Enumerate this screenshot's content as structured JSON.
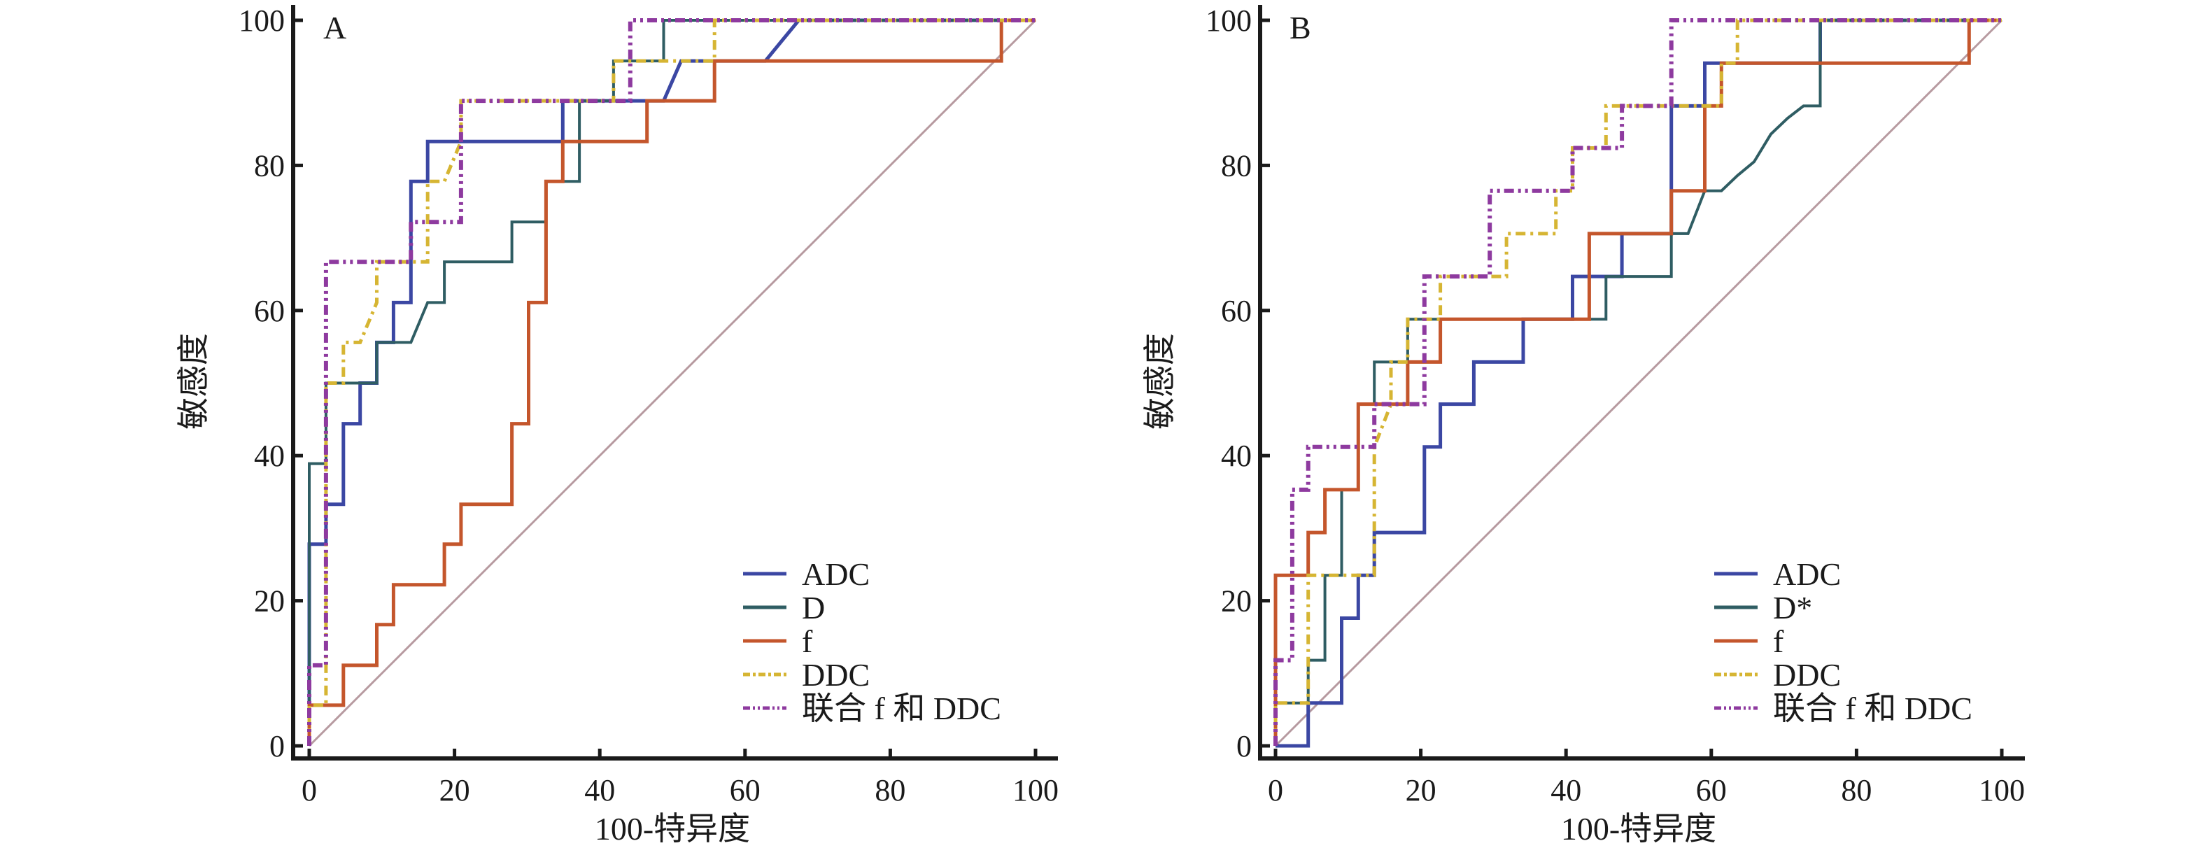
{
  "figure": {
    "background": "#ffffff",
    "series_styles": {
      "ADC": {
        "color": "#3b47a3",
        "dash": "solid"
      },
      "D": {
        "color": "#2f5d63",
        "dash": "solid"
      },
      "D*": {
        "color": "#2f5d63",
        "dash": "solid"
      },
      "f": {
        "color": "#c4562c",
        "dash": "solid"
      },
      "DDC": {
        "color": "#d6b533",
        "dash": "dash-dot"
      },
      "联合 f 和 DDC": {
        "color": "#8e3a9f",
        "dash": "dash-dot-dot"
      }
    },
    "reference_line_color": "#b79aa0"
  },
  "chart_data": [
    {
      "type": "line",
      "panel_label": "A",
      "title": "",
      "xlabel": "100-特异度",
      "ylabel": "敏感度",
      "xlim": [
        0,
        100
      ],
      "ylim": [
        0,
        100
      ],
      "xticks": [
        "0",
        "20",
        "40",
        "60",
        "80",
        "100"
      ],
      "yticks": [
        "0",
        "20",
        "40",
        "60",
        "80",
        "100"
      ],
      "grid": false,
      "legend_position": "bottom-right",
      "reference_line": {
        "label": "",
        "points": [
          [
            0,
            0
          ],
          [
            100,
            100
          ]
        ]
      },
      "series": [
        {
          "name": "ADC",
          "points": [
            [
              0,
              0
            ],
            [
              0,
              27.8
            ],
            [
              2.3,
              27.8
            ],
            [
              2.3,
              33.3
            ],
            [
              4.7,
              33.3
            ],
            [
              4.7,
              44.4
            ],
            [
              7.0,
              44.4
            ],
            [
              7.0,
              50
            ],
            [
              9.3,
              50
            ],
            [
              9.3,
              55.6
            ],
            [
              11.6,
              55.6
            ],
            [
              11.6,
              61.1
            ],
            [
              14.0,
              61.1
            ],
            [
              14.0,
              77.8
            ],
            [
              16.3,
              77.8
            ],
            [
              16.3,
              83.3
            ],
            [
              34.9,
              83.3
            ],
            [
              34.9,
              88.9
            ],
            [
              48.8,
              88.9
            ],
            [
              51.2,
              94.4
            ],
            [
              62.8,
              94.4
            ],
            [
              65.1,
              97.2
            ],
            [
              67.4,
              100
            ],
            [
              100,
              100
            ]
          ]
        },
        {
          "name": "D",
          "points": [
            [
              0,
              0
            ],
            [
              0,
              38.9
            ],
            [
              2.3,
              38.9
            ],
            [
              2.3,
              50
            ],
            [
              9.3,
              50
            ],
            [
              9.3,
              55.6
            ],
            [
              14.0,
              55.6
            ],
            [
              16.3,
              61.1
            ],
            [
              18.6,
              61.1
            ],
            [
              18.6,
              66.7
            ],
            [
              27.9,
              66.7
            ],
            [
              27.9,
              72.2
            ],
            [
              32.6,
              72.2
            ],
            [
              32.6,
              77.8
            ],
            [
              37.2,
              77.8
            ],
            [
              37.2,
              88.9
            ],
            [
              41.9,
              88.9
            ],
            [
              41.9,
              94.4
            ],
            [
              48.8,
              94.4
            ],
            [
              48.8,
              100
            ],
            [
              100,
              100
            ]
          ]
        },
        {
          "name": "f",
          "points": [
            [
              0,
              0
            ],
            [
              0,
              5.6
            ],
            [
              4.7,
              5.6
            ],
            [
              4.7,
              11.1
            ],
            [
              9.3,
              11.1
            ],
            [
              9.3,
              16.7
            ],
            [
              11.6,
              16.7
            ],
            [
              11.6,
              22.2
            ],
            [
              18.6,
              22.2
            ],
            [
              18.6,
              27.8
            ],
            [
              20.9,
              27.8
            ],
            [
              20.9,
              33.3
            ],
            [
              27.9,
              33.3
            ],
            [
              27.9,
              44.4
            ],
            [
              30.2,
              44.4
            ],
            [
              30.2,
              61.1
            ],
            [
              32.6,
              61.1
            ],
            [
              32.6,
              77.8
            ],
            [
              34.9,
              77.8
            ],
            [
              34.9,
              83.3
            ],
            [
              46.5,
              83.3
            ],
            [
              46.5,
              88.9
            ],
            [
              55.8,
              88.9
            ],
            [
              55.8,
              94.4
            ],
            [
              95.3,
              94.4
            ],
            [
              95.3,
              100
            ],
            [
              100,
              100
            ]
          ]
        },
        {
          "name": "DDC",
          "points": [
            [
              0,
              0
            ],
            [
              0,
              5.6
            ],
            [
              2.3,
              5.6
            ],
            [
              2.3,
              50
            ],
            [
              4.7,
              50
            ],
            [
              4.7,
              55.6
            ],
            [
              7.0,
              55.6
            ],
            [
              9.3,
              61.1
            ],
            [
              9.3,
              66.7
            ],
            [
              16.3,
              66.7
            ],
            [
              16.3,
              77.8
            ],
            [
              18.6,
              77.8
            ],
            [
              20.9,
              83.3
            ],
            [
              20.9,
              88.9
            ],
            [
              41.9,
              88.9
            ],
            [
              41.9,
              94.4
            ],
            [
              55.8,
              94.4
            ],
            [
              55.8,
              100
            ],
            [
              100,
              100
            ]
          ]
        },
        {
          "name": "联合 f 和 DDC",
          "points": [
            [
              0,
              0
            ],
            [
              0,
              11.1
            ],
            [
              2.3,
              11.1
            ],
            [
              2.3,
              66.7
            ],
            [
              14.0,
              66.7
            ],
            [
              14.0,
              72.2
            ],
            [
              20.9,
              72.2
            ],
            [
              20.9,
              88.9
            ],
            [
              44.2,
              88.9
            ],
            [
              44.2,
              100
            ],
            [
              100,
              100
            ]
          ]
        }
      ]
    },
    {
      "type": "line",
      "panel_label": "B",
      "title": "",
      "xlabel": "100-特异度",
      "ylabel": "敏感度",
      "xlim": [
        0,
        100
      ],
      "ylim": [
        0,
        100
      ],
      "xticks": [
        "0",
        "20",
        "40",
        "60",
        "80",
        "100"
      ],
      "yticks": [
        "0",
        "20",
        "40",
        "60",
        "80",
        "100"
      ],
      "grid": false,
      "legend_position": "bottom-right",
      "reference_line": {
        "label": "",
        "points": [
          [
            0,
            0
          ],
          [
            100,
            100
          ]
        ]
      },
      "series": [
        {
          "name": "ADC",
          "points": [
            [
              0,
              0
            ],
            [
              4.5,
              0
            ],
            [
              4.5,
              5.9
            ],
            [
              9.1,
              5.9
            ],
            [
              9.1,
              17.6
            ],
            [
              11.4,
              17.6
            ],
            [
              11.4,
              23.5
            ],
            [
              13.6,
              23.5
            ],
            [
              13.6,
              29.4
            ],
            [
              20.5,
              29.4
            ],
            [
              20.5,
              41.2
            ],
            [
              22.7,
              41.2
            ],
            [
              22.7,
              47.1
            ],
            [
              27.3,
              47.1
            ],
            [
              27.3,
              52.9
            ],
            [
              34.1,
              52.9
            ],
            [
              34.1,
              58.8
            ],
            [
              40.9,
              58.8
            ],
            [
              40.9,
              64.7
            ],
            [
              47.7,
              64.7
            ],
            [
              47.7,
              70.6
            ],
            [
              54.5,
              70.6
            ],
            [
              54.5,
              88.2
            ],
            [
              59.1,
              88.2
            ],
            [
              59.1,
              94.1
            ],
            [
              75,
              94.1
            ],
            [
              75,
              100
            ],
            [
              100,
              100
            ]
          ]
        },
        {
          "name": "D*",
          "points": [
            [
              0,
              0
            ],
            [
              0,
              5.9
            ],
            [
              4.5,
              5.9
            ],
            [
              4.5,
              11.8
            ],
            [
              6.8,
              11.8
            ],
            [
              6.8,
              23.5
            ],
            [
              9.1,
              23.5
            ],
            [
              9.1,
              35.3
            ],
            [
              11.4,
              35.3
            ],
            [
              11.4,
              47.1
            ],
            [
              13.6,
              47.1
            ],
            [
              13.6,
              52.9
            ],
            [
              18.2,
              52.9
            ],
            [
              18.2,
              58.8
            ],
            [
              45.5,
              58.8
            ],
            [
              45.5,
              64.7
            ],
            [
              54.5,
              64.7
            ],
            [
              54.5,
              70.6
            ],
            [
              56.8,
              70.6
            ],
            [
              59.1,
              76.5
            ],
            [
              61.4,
              76.5
            ],
            [
              63.6,
              78.6
            ],
            [
              65.9,
              80.5
            ],
            [
              68.2,
              84.3
            ],
            [
              70.5,
              86.5
            ],
            [
              72.7,
              88.2
            ],
            [
              75,
              88.2
            ],
            [
              75,
              100
            ],
            [
              100,
              100
            ]
          ]
        },
        {
          "name": "f",
          "points": [
            [
              0,
              0
            ],
            [
              0,
              23.5
            ],
            [
              4.5,
              23.5
            ],
            [
              4.5,
              29.4
            ],
            [
              6.8,
              29.4
            ],
            [
              6.8,
              35.3
            ],
            [
              11.4,
              35.3
            ],
            [
              11.4,
              47.1
            ],
            [
              18.2,
              47.1
            ],
            [
              18.2,
              52.9
            ],
            [
              22.7,
              52.9
            ],
            [
              22.7,
              58.8
            ],
            [
              43.2,
              58.8
            ],
            [
              43.2,
              70.6
            ],
            [
              54.5,
              70.6
            ],
            [
              54.5,
              76.5
            ],
            [
              59.1,
              76.5
            ],
            [
              59.1,
              88.2
            ],
            [
              61.4,
              88.2
            ],
            [
              61.4,
              94.1
            ],
            [
              95.5,
              94.1
            ],
            [
              95.5,
              100
            ],
            [
              100,
              100
            ]
          ]
        },
        {
          "name": "DDC",
          "points": [
            [
              0,
              0
            ],
            [
              0,
              5.9
            ],
            [
              4.5,
              5.9
            ],
            [
              4.5,
              23.5
            ],
            [
              13.6,
              23.5
            ],
            [
              13.6,
              41.2
            ],
            [
              15.9,
              47.1
            ],
            [
              15.9,
              52.9
            ],
            [
              18.2,
              52.9
            ],
            [
              18.2,
              58.8
            ],
            [
              22.7,
              58.8
            ],
            [
              22.7,
              64.7
            ],
            [
              31.8,
              64.7
            ],
            [
              31.8,
              70.6
            ],
            [
              38.6,
              70.6
            ],
            [
              38.6,
              76.5
            ],
            [
              40.9,
              76.5
            ],
            [
              40.9,
              82.4
            ],
            [
              45.5,
              82.4
            ],
            [
              45.5,
              88.2
            ],
            [
              61.4,
              88.2
            ],
            [
              61.4,
              94.1
            ],
            [
              63.6,
              94.1
            ],
            [
              63.6,
              100
            ],
            [
              100,
              100
            ]
          ]
        },
        {
          "name": "联合 f 和 DDC",
          "points": [
            [
              0,
              0
            ],
            [
              0,
              11.8
            ],
            [
              2.3,
              11.8
            ],
            [
              2.3,
              35.3
            ],
            [
              4.5,
              35.3
            ],
            [
              4.5,
              41.2
            ],
            [
              13.6,
              41.2
            ],
            [
              13.6,
              47.1
            ],
            [
              20.5,
              47.1
            ],
            [
              20.5,
              64.7
            ],
            [
              29.5,
              64.7
            ],
            [
              29.5,
              76.5
            ],
            [
              40.9,
              76.5
            ],
            [
              40.9,
              82.4
            ],
            [
              47.7,
              82.4
            ],
            [
              47.7,
              88.2
            ],
            [
              54.5,
              88.2
            ],
            [
              54.5,
              100
            ],
            [
              100,
              100
            ]
          ]
        }
      ]
    }
  ]
}
